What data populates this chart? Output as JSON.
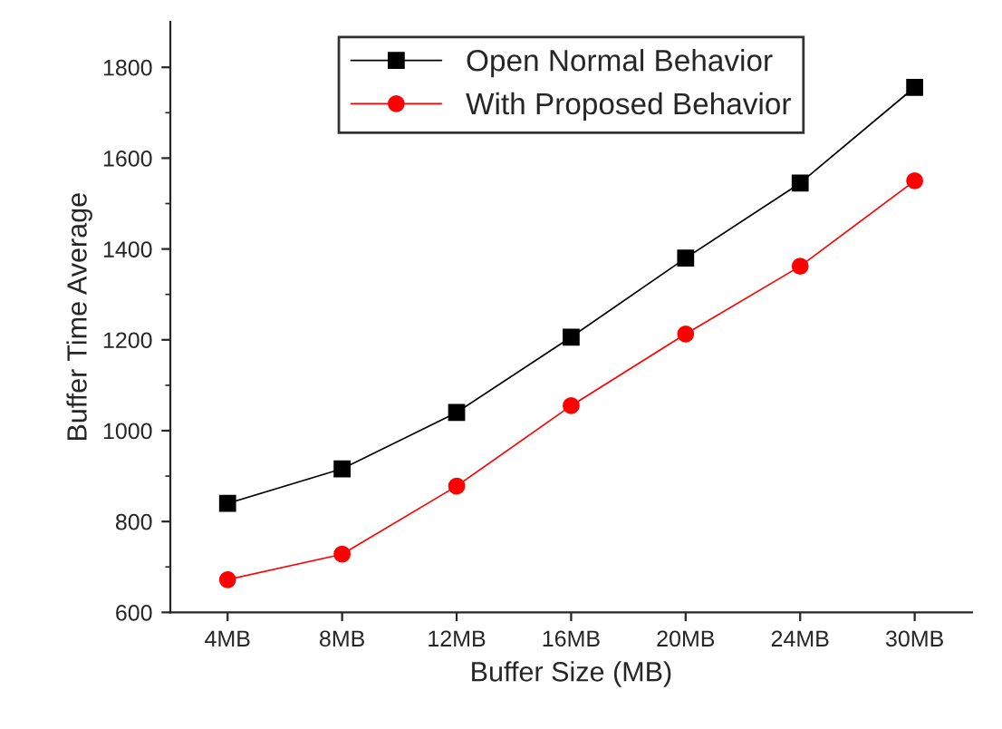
{
  "chart_data": {
    "type": "line",
    "xlabel": "Buffer Size (MB)",
    "ylabel": "Buffer Time Average",
    "categories": [
      "4MB",
      "8MB",
      "12MB",
      "16MB",
      "20MB",
      "24MB",
      "30MB"
    ],
    "series": [
      {
        "name": "Open Normal Behavior",
        "color": "#000000",
        "marker": "square",
        "values": [
          840,
          916,
          1040,
          1206,
          1380,
          1545,
          1756
        ]
      },
      {
        "name": "With Proposed Behavior",
        "color": "#ff0000",
        "marker": "circle",
        "values": [
          672,
          728,
          878,
          1055,
          1213,
          1362,
          1550
        ]
      }
    ],
    "ylim": [
      600,
      1900
    ],
    "yticks": [
      600,
      800,
      1000,
      1200,
      1400,
      1600,
      1800
    ],
    "legend": "top",
    "grid": false
  }
}
